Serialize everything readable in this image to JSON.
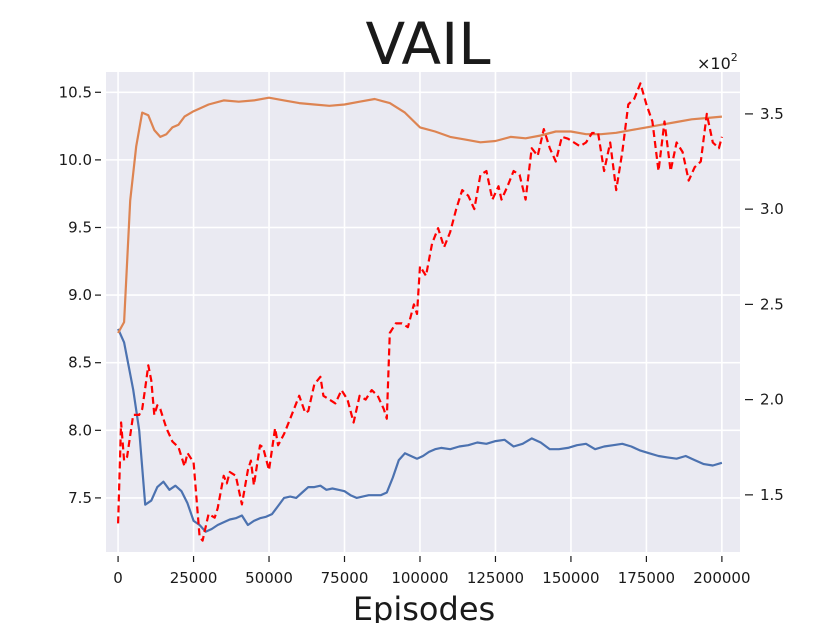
{
  "chart_data": {
    "type": "line",
    "title": "VAIL",
    "xlabel": "Episodes",
    "xlim": [
      -4000,
      206000
    ],
    "ylim_left": [
      7.1,
      10.65
    ],
    "ylim_right": [
      1.2,
      3.72
    ],
    "right_axis_multiplier": "×10",
    "right_axis_multiplier_exp": "2",
    "x_ticks": [
      0,
      25000,
      50000,
      75000,
      100000,
      125000,
      150000,
      175000,
      200000
    ],
    "x_tick_labels": [
      "0",
      "25000",
      "50000",
      "75000",
      "100000",
      "125000",
      "150000",
      "175000",
      "200000"
    ],
    "y_left_ticks": [
      7.5,
      8.0,
      8.5,
      9.0,
      9.5,
      10.0,
      10.5
    ],
    "y_left_tick_labels": [
      "7.5",
      "8.0",
      "8.5",
      "9.0",
      "9.5",
      "10.0",
      "10.5"
    ],
    "y_right_ticks": [
      1.5,
      2.0,
      2.5,
      3.0,
      3.5
    ],
    "y_right_tick_labels": [
      "1.5",
      "2.0",
      "2.5",
      "3.0",
      "3.5"
    ],
    "grid": true,
    "legend": "none",
    "series": [
      {
        "axis": "left",
        "color": "#4c72b0",
        "style": "solid",
        "x": [
          0,
          2000,
          5000,
          7000,
          9000,
          11000,
          13000,
          15000,
          17000,
          19000,
          21000,
          23000,
          25000,
          27000,
          29000,
          31000,
          33000,
          35000,
          37000,
          39000,
          41000,
          43000,
          45000,
          47000,
          49000,
          51000,
          53000,
          55000,
          57000,
          59000,
          61000,
          63000,
          65000,
          67000,
          69000,
          71000,
          73000,
          75000,
          77000,
          79000,
          81000,
          83000,
          85000,
          87000,
          89000,
          91000,
          93000,
          95000,
          97000,
          99000,
          101000,
          103000,
          105000,
          107000,
          110000,
          113000,
          116000,
          119000,
          122000,
          125000,
          128000,
          131000,
          134000,
          137000,
          140000,
          143000,
          146000,
          149000,
          152000,
          155000,
          158000,
          161000,
          164000,
          167000,
          170000,
          173000,
          176000,
          179000,
          182000,
          185000,
          188000,
          191000,
          194000,
          197000,
          200000
        ],
        "values": [
          8.75,
          8.65,
          8.3,
          8.0,
          7.45,
          7.48,
          7.58,
          7.62,
          7.56,
          7.59,
          7.55,
          7.46,
          7.33,
          7.3,
          7.25,
          7.27,
          7.3,
          7.32,
          7.34,
          7.35,
          7.37,
          7.3,
          7.33,
          7.35,
          7.36,
          7.38,
          7.44,
          7.5,
          7.51,
          7.5,
          7.54,
          7.58,
          7.58,
          7.59,
          7.56,
          7.57,
          7.56,
          7.55,
          7.52,
          7.5,
          7.51,
          7.52,
          7.52,
          7.52,
          7.54,
          7.65,
          7.78,
          7.83,
          7.81,
          7.79,
          7.81,
          7.84,
          7.86,
          7.87,
          7.86,
          7.88,
          7.89,
          7.91,
          7.9,
          7.92,
          7.93,
          7.88,
          7.9,
          7.94,
          7.91,
          7.86,
          7.86,
          7.87,
          7.89,
          7.9,
          7.86,
          7.88,
          7.89,
          7.9,
          7.88,
          7.85,
          7.83,
          7.81,
          7.8,
          7.79,
          7.81,
          7.78,
          7.75,
          7.74,
          7.76
        ]
      },
      {
        "axis": "left",
        "color": "#dd8452",
        "style": "solid",
        "x": [
          0,
          2000,
          4000,
          6000,
          8000,
          10000,
          12000,
          14000,
          16000,
          18000,
          20000,
          22000,
          25000,
          30000,
          35000,
          40000,
          45000,
          50000,
          55000,
          60000,
          65000,
          70000,
          75000,
          80000,
          85000,
          90000,
          95000,
          100000,
          105000,
          110000,
          115000,
          120000,
          125000,
          130000,
          135000,
          140000,
          145000,
          150000,
          155000,
          160000,
          165000,
          170000,
          175000,
          180000,
          185000,
          190000,
          195000,
          200000
        ],
        "values": [
          8.72,
          8.8,
          9.7,
          10.1,
          10.35,
          10.33,
          10.22,
          10.17,
          10.19,
          10.24,
          10.26,
          10.32,
          10.36,
          10.41,
          10.44,
          10.43,
          10.44,
          10.46,
          10.44,
          10.42,
          10.41,
          10.4,
          10.41,
          10.43,
          10.45,
          10.42,
          10.35,
          10.24,
          10.21,
          10.17,
          10.15,
          10.13,
          10.14,
          10.17,
          10.16,
          10.18,
          10.21,
          10.21,
          10.19,
          10.19,
          10.2,
          10.22,
          10.24,
          10.26,
          10.28,
          10.3,
          10.31,
          10.32
        ]
      },
      {
        "axis": "right",
        "color": "#ff0000",
        "style": "dashed",
        "x": [
          0,
          1000,
          2000,
          3000,
          5000,
          7000,
          8000,
          9000,
          10000,
          11000,
          12000,
          13000,
          14000,
          16000,
          18000,
          20000,
          22000,
          23000,
          25000,
          27000,
          28000,
          30000,
          32000,
          33000,
          35000,
          36000,
          37000,
          39000,
          41000,
          43000,
          44000,
          45000,
          47000,
          48000,
          50000,
          52000,
          53000,
          55000,
          57000,
          60000,
          62000,
          63000,
          65000,
          67000,
          68000,
          70000,
          72000,
          74000,
          76000,
          78000,
          80000,
          82000,
          84000,
          86000,
          88000,
          89000,
          90000,
          92000,
          94000,
          96000,
          98000,
          99000,
          100000,
          102000,
          104000,
          106000,
          108000,
          110000,
          112000,
          114000,
          116000,
          118000,
          120000,
          122000,
          124000,
          126000,
          127000,
          129000,
          131000,
          133000,
          135000,
          137000,
          139000,
          141000,
          143000,
          145000,
          147000,
          149000,
          151000,
          153000,
          155000,
          157000,
          159000,
          161000,
          163000,
          165000,
          167000,
          169000,
          171000,
          173000,
          175000,
          177000,
          179000,
          181000,
          183000,
          185000,
          187000,
          189000,
          191000,
          193000,
          195000,
          197000,
          199000,
          200000
        ],
        "values": [
          1.35,
          1.88,
          1.68,
          1.7,
          1.92,
          1.92,
          1.95,
          2.06,
          2.18,
          2.1,
          1.92,
          1.97,
          1.95,
          1.85,
          1.78,
          1.75,
          1.65,
          1.72,
          1.67,
          1.28,
          1.26,
          1.4,
          1.38,
          1.43,
          1.6,
          1.56,
          1.62,
          1.6,
          1.45,
          1.63,
          1.68,
          1.55,
          1.76,
          1.75,
          1.63,
          1.85,
          1.76,
          1.82,
          1.9,
          2.02,
          1.93,
          1.94,
          2.08,
          2.12,
          2.02,
          2.0,
          1.98,
          2.05,
          2.0,
          1.88,
          2.02,
          2.0,
          2.05,
          2.02,
          1.95,
          1.9,
          2.35,
          2.4,
          2.4,
          2.38,
          2.5,
          2.45,
          2.7,
          2.65,
          2.82,
          2.9,
          2.8,
          2.88,
          3.0,
          3.1,
          3.07,
          3.0,
          3.18,
          3.2,
          3.05,
          3.12,
          3.05,
          3.12,
          3.2,
          3.18,
          3.05,
          3.32,
          3.28,
          3.42,
          3.32,
          3.25,
          3.38,
          3.37,
          3.35,
          3.33,
          3.35,
          3.4,
          3.4,
          3.2,
          3.35,
          3.1,
          3.3,
          3.55,
          3.58,
          3.66,
          3.55,
          3.46,
          3.2,
          3.46,
          3.2,
          3.35,
          3.3,
          3.15,
          3.22,
          3.25,
          3.5,
          3.35,
          3.32,
          3.38
        ]
      }
    ]
  }
}
